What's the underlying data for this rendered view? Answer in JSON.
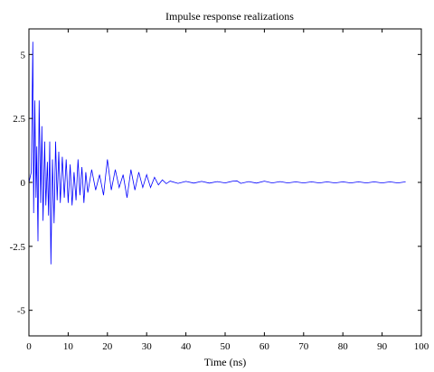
{
  "chart_data": {
    "type": "line",
    "title": "Impulse response realizations",
    "xlabel": "Time (ns)",
    "ylabel": "",
    "xlim": [
      0,
      100
    ],
    "ylim": [
      -6,
      6
    ],
    "x_ticks": [
      0,
      10,
      20,
      30,
      40,
      50,
      60,
      70,
      80,
      90,
      100
    ],
    "y_ticks": [
      -5,
      -2.5,
      0,
      2.5,
      5
    ],
    "y_tick_labels": [
      "-5",
      "-2.5",
      "0",
      "2.5",
      "5"
    ],
    "grid": false,
    "series": [
      {
        "color": "#0000ff",
        "x": [
          0,
          0.6,
          1.0,
          1.2,
          1.5,
          1.8,
          2.0,
          2.3,
          2.6,
          3.0,
          3.3,
          3.6,
          4.0,
          4.3,
          4.7,
          5.0,
          5.3,
          5.6,
          6.0,
          6.4,
          6.8,
          7.2,
          7.6,
          8.0,
          8.5,
          9.0,
          9.5,
          10.0,
          10.5,
          11.0,
          11.5,
          12.0,
          12.5,
          13.0,
          13.5,
          14.0,
          14.5,
          15.0,
          16.0,
          17.0,
          18.0,
          19.0,
          20.0,
          21.0,
          22.0,
          23.0,
          24.0,
          25.0,
          26.0,
          27.0,
          28.0,
          29.0,
          30.0,
          31.0,
          32.0,
          33.0,
          34.0,
          35.0,
          36.0,
          38.0,
          40.0,
          42.0,
          44.0,
          46.0,
          48.0,
          50.0,
          52.0,
          53.0,
          54.0,
          56.0,
          58.0,
          60.0,
          62.0,
          64.0,
          66.0,
          68.0,
          70.0,
          72.0,
          74.0,
          76.0,
          78.0,
          80.0,
          82.0,
          84.0,
          86.0,
          88.0,
          90.0,
          92.0,
          94.0,
          96.0
        ],
        "y": [
          0,
          0.4,
          5.5,
          -1.2,
          3.2,
          -0.6,
          1.4,
          -2.3,
          3.2,
          -0.8,
          2.2,
          -1.5,
          1.6,
          -0.9,
          0.8,
          -1.3,
          1.6,
          -3.2,
          0.9,
          -1.6,
          1.6,
          -0.7,
          1.2,
          -0.8,
          1.0,
          -0.6,
          0.9,
          -0.8,
          0.7,
          -0.9,
          0.4,
          -0.7,
          0.9,
          -0.5,
          0.6,
          -0.8,
          0.4,
          -0.4,
          0.5,
          -0.3,
          0.3,
          -0.5,
          0.9,
          -0.3,
          0.5,
          -0.2,
          0.3,
          -0.6,
          0.5,
          -0.3,
          0.4,
          -0.2,
          0.3,
          -0.2,
          0.2,
          -0.1,
          0.1,
          -0.05,
          0.05,
          -0.04,
          0.04,
          -0.03,
          0.04,
          -0.03,
          0.03,
          -0.02,
          0.05,
          0.06,
          -0.04,
          0.03,
          -0.03,
          0.05,
          -0.02,
          0.03,
          -0.02,
          0.02,
          -0.02,
          0.02,
          -0.02,
          0.02,
          -0.02,
          0.02,
          -0.02,
          0.02,
          -0.02,
          0.02,
          -0.02,
          0.02,
          -0.02,
          0.02
        ]
      }
    ]
  }
}
